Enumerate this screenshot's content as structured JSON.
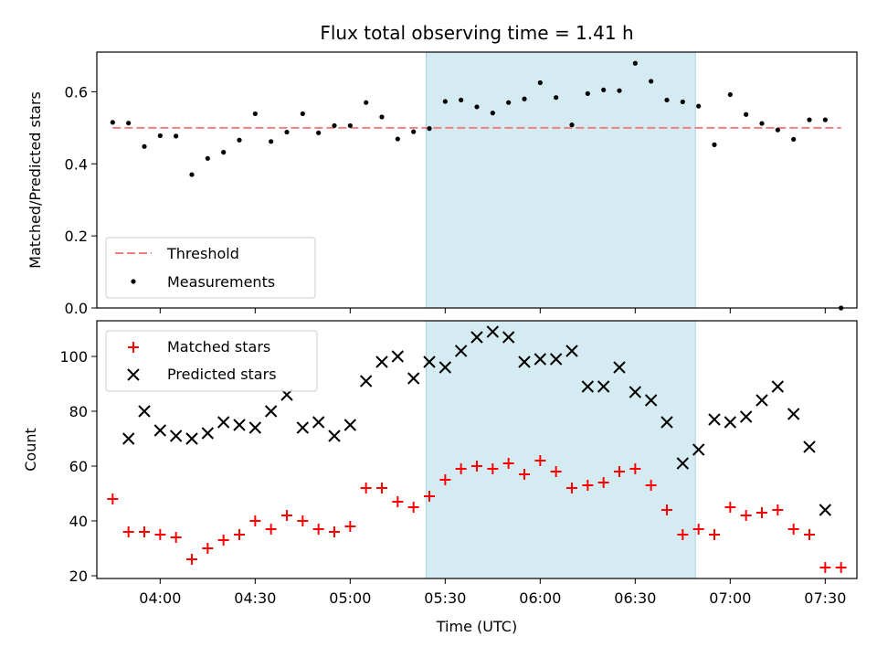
{
  "chart_data": [
    {
      "type": "scatter",
      "title": "Flux total observing time = 1.41 h",
      "ylabel": "Matched/Predicted stars",
      "ylim": [
        0,
        0.71
      ],
      "yticks": [
        "0.0",
        "0.2",
        "0.4",
        "0.6"
      ],
      "ytick_values": [
        0,
        0.2,
        0.4,
        0.6
      ],
      "highlight_span": {
        "start": "05:24",
        "end": "06:49",
        "color": "#d4ebf2"
      },
      "legend": {
        "placement": "lower-left",
        "entries": [
          "Threshold",
          "Measurements"
        ]
      },
      "series": [
        {
          "name": "Threshold",
          "style": "dashed-line",
          "color": "#f08080",
          "x": [
            "03:45",
            "07:35"
          ],
          "values": [
            0.5,
            0.5
          ]
        },
        {
          "name": "Measurements",
          "style": "dot",
          "color": "#000000",
          "x": [
            "03:45",
            "03:50",
            "03:55",
            "04:00",
            "04:05",
            "04:10",
            "04:15",
            "04:20",
            "04:25",
            "04:30",
            "04:35",
            "04:40",
            "04:45",
            "04:50",
            "04:55",
            "05:00",
            "05:05",
            "05:10",
            "05:15",
            "05:20",
            "05:25",
            "05:30",
            "05:35",
            "05:40",
            "05:45",
            "05:50",
            "05:55",
            "06:00",
            "06:05",
            "06:10",
            "06:15",
            "06:20",
            "06:25",
            "06:30",
            "06:35",
            "06:40",
            "06:45",
            "06:50",
            "06:55",
            "07:00",
            "07:05",
            "07:10",
            "07:15",
            "07:20",
            "07:25",
            "07:30",
            "07:35"
          ],
          "values": [
            0.515,
            0.513,
            0.448,
            0.478,
            0.477,
            0.37,
            0.415,
            0.432,
            0.466,
            0.539,
            0.462,
            0.488,
            0.539,
            0.486,
            0.506,
            0.506,
            0.57,
            0.53,
            0.469,
            0.489,
            0.498,
            0.573,
            0.577,
            0.558,
            0.541,
            0.57,
            0.58,
            0.625,
            0.584,
            0.508,
            0.595,
            0.605,
            0.603,
            0.679,
            0.629,
            0.577,
            0.572,
            0.56,
            0.453,
            0.592,
            0.537,
            0.512,
            0.494,
            0.468,
            0.522,
            0.522,
            0.0
          ]
        }
      ]
    },
    {
      "type": "scatter",
      "xlabel": "Time (UTC)",
      "ylabel": "Count",
      "ylim": [
        19,
        113
      ],
      "yticks": [
        "20",
        "40",
        "60",
        "80",
        "100"
      ],
      "ytick_values": [
        20,
        40,
        60,
        80,
        100
      ],
      "xticks": [
        "04:00",
        "04:30",
        "05:00",
        "05:30",
        "06:00",
        "06:30",
        "07:00",
        "07:30"
      ],
      "xlim": [
        "03:40",
        "07:40"
      ],
      "highlight_span": {
        "start": "05:24",
        "end": "06:49",
        "color": "#d4ebf2"
      },
      "legend": {
        "placement": "upper-left",
        "entries": [
          "Matched stars",
          "Predicted stars"
        ]
      },
      "series": [
        {
          "name": "Matched stars",
          "marker": "plus",
          "color": "#ff0000",
          "x": [
            "03:45",
            "03:50",
            "03:55",
            "04:00",
            "04:05",
            "04:10",
            "04:15",
            "04:20",
            "04:25",
            "04:30",
            "04:35",
            "04:40",
            "04:45",
            "04:50",
            "04:55",
            "05:00",
            "05:05",
            "05:10",
            "05:15",
            "05:20",
            "05:25",
            "05:30",
            "05:35",
            "05:40",
            "05:45",
            "05:50",
            "05:55",
            "06:00",
            "06:05",
            "06:10",
            "06:15",
            "06:20",
            "06:25",
            "06:30",
            "06:35",
            "06:40",
            "06:45",
            "06:50",
            "06:55",
            "07:00",
            "07:05",
            "07:10",
            "07:15",
            "07:20",
            "07:25",
            "07:30",
            "07:35"
          ],
          "values": [
            48,
            36,
            36,
            35,
            34,
            26,
            30,
            33,
            35,
            40,
            37,
            42,
            40,
            37,
            36,
            38,
            52,
            52,
            47,
            45,
            49,
            55,
            59,
            60,
            59,
            61,
            57,
            62,
            58,
            52,
            53,
            54,
            58,
            59,
            53,
            44,
            35,
            37,
            35,
            45,
            42,
            43,
            44,
            37,
            35,
            23,
            23
          ]
        },
        {
          "name": "Predicted stars",
          "marker": "x",
          "color": "#000000",
          "x": [
            "03:50",
            "03:55",
            "04:00",
            "04:05",
            "04:10",
            "04:15",
            "04:20",
            "04:25",
            "04:30",
            "04:35",
            "04:40",
            "04:45",
            "04:50",
            "04:55",
            "05:00",
            "05:05",
            "05:10",
            "05:15",
            "05:20",
            "05:25",
            "05:30",
            "05:35",
            "05:40",
            "05:45",
            "05:50",
            "05:55",
            "06:00",
            "06:05",
            "06:10",
            "06:15",
            "06:20",
            "06:25",
            "06:30",
            "06:35",
            "06:40",
            "06:45",
            "06:50",
            "06:55",
            "07:00",
            "07:05",
            "07:10",
            "07:15",
            "07:20",
            "07:25",
            "07:30"
          ],
          "values": [
            70,
            80,
            73,
            71,
            70,
            72,
            76,
            75,
            74,
            80,
            86,
            74,
            76,
            71,
            75,
            91,
            98,
            100,
            92,
            98,
            96,
            102,
            107,
            109,
            107,
            98,
            99,
            99,
            102,
            89,
            89,
            96,
            87,
            84,
            76,
            61,
            66,
            77,
            76,
            78,
            84,
            89,
            79,
            67,
            44
          ]
        }
      ]
    }
  ]
}
